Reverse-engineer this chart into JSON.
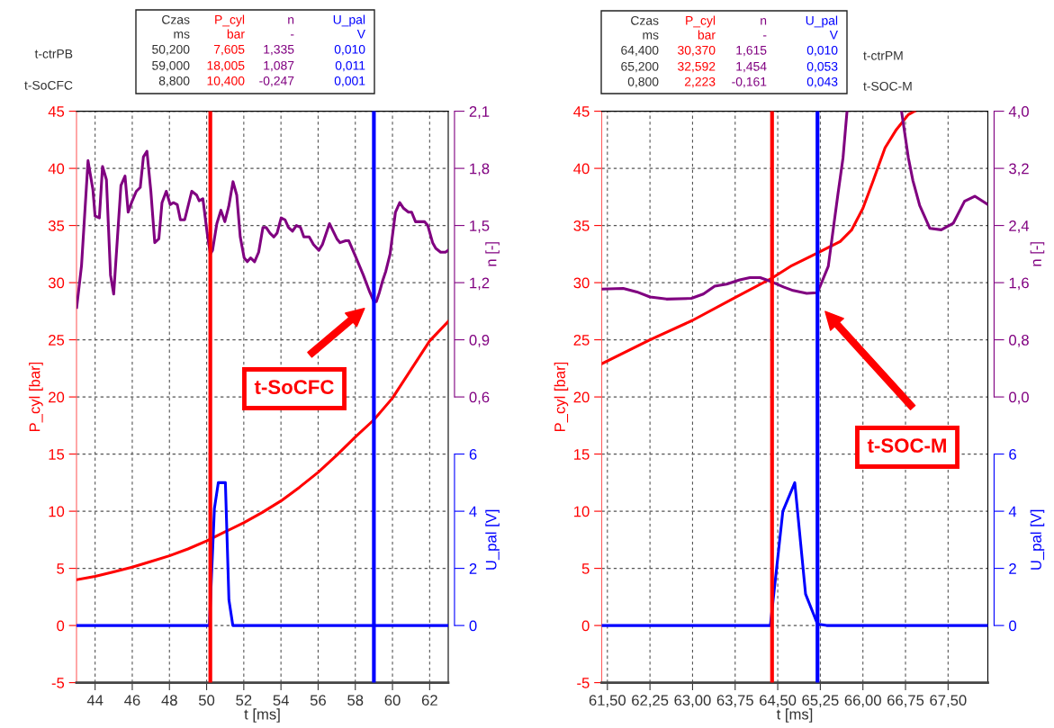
{
  "chart_data": [
    {
      "type": "line",
      "xlabel": "t [ms]",
      "ylabel": "P_cyl [bar]",
      "y2label": "n [-]",
      "y3label": "U_pal [V]",
      "xlim": [
        43,
        63
      ],
      "xticks": [
        44,
        46,
        48,
        50,
        52,
        54,
        56,
        58,
        60,
        62
      ],
      "ylim": [
        -5,
        45
      ],
      "yticks": [
        -5,
        0,
        5,
        10,
        15,
        20,
        25,
        30,
        35,
        40,
        45
      ],
      "y2lim": [
        -0.9,
        2.1
      ],
      "y2ticks": [
        {
          "value": 0.6,
          "label": "0,6"
        },
        {
          "value": 0.9,
          "label": "0,9"
        },
        {
          "value": 1.2,
          "label": "1,2"
        },
        {
          "value": 1.5,
          "label": "1,5"
        },
        {
          "value": 1.8,
          "label": "1,8"
        },
        {
          "value": 2.1,
          "label": "2,1"
        }
      ],
      "y3lim": [
        -2,
        18
      ],
      "y3ticks": [
        0,
        2,
        4,
        6
      ],
      "grid": true,
      "line_style": "solid",
      "series": [
        {
          "name": "P_cyl",
          "color": "#ff0000",
          "x": [
            43,
            44,
            45,
            46,
            47,
            48,
            49,
            50,
            51,
            52,
            53,
            54,
            55,
            56,
            57,
            58,
            59,
            60,
            61,
            62,
            63
          ],
          "values": [
            4.0,
            4.3,
            4.7,
            5.1,
            5.6,
            6.1,
            6.7,
            7.4,
            8.2,
            9.0,
            9.9,
            10.9,
            12.1,
            13.4,
            14.9,
            16.5,
            18.0,
            19.9,
            22.4,
            24.9,
            26.6
          ]
        },
        {
          "name": "n",
          "color": "#800080",
          "axis": "y2",
          "x": [
            43.01,
            43.27,
            43.62,
            43.88,
            44.0,
            44.23,
            44.4,
            44.61,
            44.83,
            45.0,
            45.39,
            45.61,
            45.78,
            45.96,
            46.22,
            46.43,
            46.6,
            46.79,
            47.0,
            47.21,
            47.43,
            47.6,
            47.83,
            48.04,
            48.21,
            48.42,
            48.59,
            48.82,
            49.2,
            49.46,
            49.6,
            49.8,
            50.03,
            50.2,
            50.32,
            50.55,
            50.77,
            50.98,
            51.19,
            51.42,
            51.62,
            51.81,
            52.02,
            52.19,
            52.37,
            52.58,
            52.8,
            53.03,
            53.2,
            53.41,
            53.62,
            53.79,
            54.01,
            54.22,
            54.4,
            54.62,
            54.83,
            55.05,
            55.23,
            55.52,
            55.75,
            56.04,
            56.23,
            56.61,
            57.01,
            57.18,
            57.48,
            57.65,
            58.0,
            58.43,
            58.78,
            59.0,
            59.13,
            59.3,
            59.47,
            59.64,
            59.87,
            60.16,
            60.39,
            60.6,
            60.86,
            61.03,
            61.24,
            61.46,
            61.72,
            61.9,
            62.16,
            62.33,
            62.59,
            62.85,
            63.0
          ],
          "values": [
            1.07,
            1.29,
            1.84,
            1.69,
            1.55,
            1.54,
            1.81,
            1.74,
            1.24,
            1.14,
            1.71,
            1.76,
            1.57,
            1.62,
            1.68,
            1.7,
            1.86,
            1.89,
            1.68,
            1.41,
            1.43,
            1.62,
            1.68,
            1.61,
            1.62,
            1.61,
            1.53,
            1.53,
            1.68,
            1.66,
            1.63,
            1.64,
            1.46,
            1.35,
            1.37,
            1.51,
            1.58,
            1.52,
            1.6,
            1.73,
            1.66,
            1.44,
            1.33,
            1.31,
            1.33,
            1.31,
            1.36,
            1.49,
            1.49,
            1.46,
            1.44,
            1.46,
            1.54,
            1.53,
            1.49,
            1.47,
            1.5,
            1.49,
            1.44,
            1.44,
            1.4,
            1.37,
            1.4,
            1.51,
            1.43,
            1.41,
            1.42,
            1.42,
            1.34,
            1.24,
            1.15,
            1.1,
            1.1,
            1.15,
            1.21,
            1.26,
            1.35,
            1.57,
            1.62,
            1.59,
            1.57,
            1.57,
            1.52,
            1.52,
            1.52,
            1.5,
            1.41,
            1.38,
            1.36,
            1.36,
            1.37
          ]
        },
        {
          "name": "U_pal",
          "color": "#0000ff",
          "axis": "y3",
          "x": [
            43,
            50.15,
            50.42,
            50.63,
            51.01,
            51.2,
            51.41,
            63
          ],
          "values": [
            0,
            0,
            4.1,
            5.0,
            5.0,
            0.9,
            0,
            0
          ]
        }
      ],
      "ref_lines": [
        {
          "axis": "x",
          "value": 50.2,
          "color": "#ff0000"
        },
        {
          "axis": "x",
          "value": 59.0,
          "color": "#0000ff"
        }
      ],
      "annotations": [
        "Czas",
        "ms",
        "bar",
        "-",
        "V",
        "50,200",
        "7,605",
        "1,335",
        "0,010",
        "59,000",
        "18,005",
        "1,087",
        "0,011",
        "8,800",
        "10,400",
        "-0,247",
        "0,001",
        "t-ctrPB",
        "t-SoCFC",
        "t-SoCFC"
      ]
    },
    {
      "type": "line",
      "xlabel": "t [ms]",
      "ylabel": "P_cyl [bar]",
      "y2label": "n [-]",
      "y3label": "U_pal [V]",
      "xlim": [
        61.4,
        68.2
      ],
      "xticks": [
        {
          "value": 61.5,
          "label": "61,50"
        },
        {
          "value": 62.25,
          "label": "62,25"
        },
        {
          "value": 63.0,
          "label": "63,00"
        },
        {
          "value": 63.75,
          "label": "63,75"
        },
        {
          "value": 64.5,
          "label": "64,50"
        },
        {
          "value": 65.25,
          "label": "65,25"
        },
        {
          "value": 66.0,
          "label": "66,00"
        },
        {
          "value": 66.75,
          "label": "66,75"
        },
        {
          "value": 67.5,
          "label": "67,50"
        }
      ],
      "ylim": [
        -5,
        45
      ],
      "yticks": [
        -5,
        0,
        5,
        10,
        15,
        20,
        25,
        30,
        35,
        40,
        45
      ],
      "y2lim": [
        -4,
        4
      ],
      "y2ticks": [
        {
          "value": 0,
          "label": "0,0"
        },
        {
          "value": 0.8,
          "label": "0,8"
        },
        {
          "value": 1.6,
          "label": "1,6"
        },
        {
          "value": 2.4,
          "label": "2,4"
        },
        {
          "value": 3.2,
          "label": "3,2"
        },
        {
          "value": 4,
          "label": "4,0"
        }
      ],
      "y3lim": [
        -2,
        18
      ],
      "y3ticks": [
        0,
        2,
        4,
        6
      ],
      "grid": true,
      "line_style": "solid",
      "series": [
        {
          "name": "P_cyl",
          "color": "#ff0000",
          "x": [
            61.4,
            62.25,
            63.0,
            63.75,
            64.4,
            64.75,
            65.2,
            65.6,
            65.8,
            66.0,
            66.18,
            66.39,
            66.59,
            66.8,
            66.91
          ],
          "values": [
            22.9,
            25.0,
            26.7,
            28.7,
            30.4,
            31.5,
            32.6,
            33.6,
            34.6,
            36.5,
            38.9,
            41.8,
            43.4,
            44.7,
            45.0
          ]
        },
        {
          "name": "n",
          "color": "#800080",
          "axis": "y2",
          "x": [
            61.4,
            61.78,
            62.02,
            62.25,
            62.54,
            62.98,
            63.19,
            63.39,
            63.6,
            63.83,
            64.01,
            64.19,
            64.4,
            64.6,
            64.77,
            65.01,
            65.2,
            65.39,
            65.56,
            65.65,
            65.72,
            66.2,
            66.68,
            66.8,
            66.88,
            67.0,
            67.18,
            67.38,
            67.59,
            67.79,
            67.97,
            68.19
          ],
          "values": [
            1.51,
            1.52,
            1.47,
            1.4,
            1.37,
            1.38,
            1.44,
            1.55,
            1.58,
            1.64,
            1.67,
            1.67,
            1.61,
            1.54,
            1.49,
            1.45,
            1.46,
            1.83,
            2.84,
            3.35,
            4.0,
            null,
            4.0,
            3.35,
            3.03,
            2.68,
            2.36,
            2.34,
            2.43,
            2.74,
            2.81,
            2.7
          ]
        },
        {
          "name": "U_pal",
          "color": "#0000ff",
          "axis": "y3",
          "x": [
            61.4,
            64.37,
            64.59,
            64.8,
            64.99,
            65.2,
            65.36,
            68.19
          ],
          "values": [
            0,
            0,
            4.0,
            5.0,
            1.1,
            0.05,
            0,
            0
          ]
        }
      ],
      "ref_lines": [
        {
          "axis": "x",
          "value": 64.4,
          "color": "#ff0000"
        },
        {
          "axis": "x",
          "value": 65.2,
          "color": "#0000ff"
        }
      ],
      "annotations": [
        "Czas",
        "ms",
        "bar",
        "-",
        "V",
        "64,400",
        "30,370",
        "1,615",
        "0,010",
        "65,200",
        "32,592",
        "1,454",
        "0,053",
        "0,800",
        "2,223",
        "-0,161",
        "0,043",
        "t-ctrPM",
        "t-SOC-M",
        "t-SOC-M"
      ]
    }
  ]
}
